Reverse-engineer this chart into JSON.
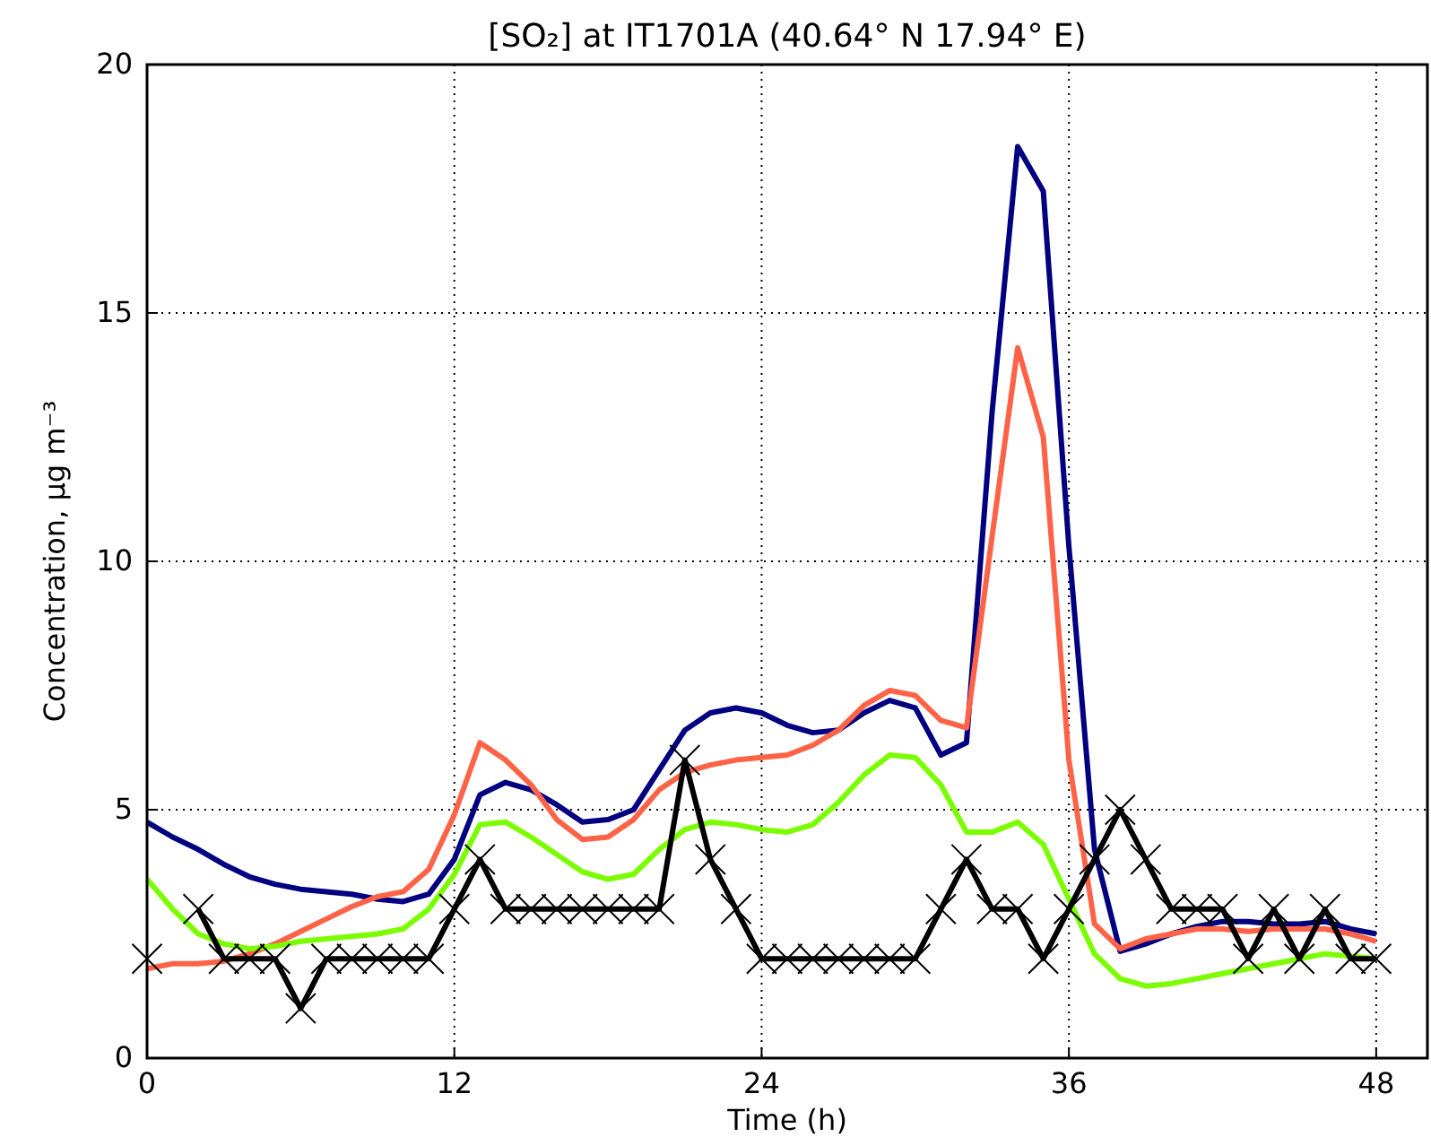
{
  "chart_data": {
    "type": "line",
    "title": "[SO₂] at IT1701A (40.64° N 17.94° E)",
    "xlabel": "Time (h)",
    "ylabel": "Concentration, μg m⁻³",
    "x": [
      0,
      1,
      2,
      3,
      4,
      5,
      6,
      7,
      8,
      9,
      10,
      11,
      12,
      13,
      14,
      15,
      16,
      17,
      18,
      19,
      20,
      21,
      22,
      23,
      24,
      25,
      26,
      27,
      28,
      29,
      30,
      31,
      32,
      33,
      34,
      35,
      36,
      37,
      38,
      39,
      40,
      41,
      42,
      43,
      44,
      45,
      46,
      47,
      48
    ],
    "xlim": [
      0,
      50
    ],
    "xticks": [
      0,
      12,
      24,
      36,
      48
    ],
    "ylim": [
      0,
      20
    ],
    "yticks": [
      0,
      5,
      10,
      15,
      20
    ],
    "grid": true,
    "line_style": "solid",
    "series": [
      {
        "color": "#000080",
        "marker": "none",
        "values": [
          4.75,
          4.45,
          4.2,
          3.9,
          3.65,
          3.5,
          3.4,
          3.35,
          3.3,
          3.2,
          3.15,
          3.3,
          4.0,
          5.3,
          5.55,
          5.4,
          5.1,
          4.75,
          4.8,
          5.0,
          5.8,
          6.6,
          6.95,
          7.05,
          6.95,
          6.7,
          6.55,
          6.6,
          6.95,
          7.2,
          7.05,
          6.1,
          6.35,
          13.0,
          18.35,
          17.45,
          10.3,
          4.2,
          2.15,
          2.3,
          2.5,
          2.65,
          2.75,
          2.75,
          2.7,
          2.7,
          2.75,
          2.6,
          2.5
        ]
      },
      {
        "color": "#ff6347",
        "marker": "none",
        "values": [
          1.8,
          1.9,
          1.9,
          1.95,
          2.1,
          2.3,
          2.55,
          2.8,
          3.05,
          3.25,
          3.35,
          3.8,
          4.9,
          6.35,
          6.0,
          5.5,
          4.8,
          4.4,
          4.45,
          4.8,
          5.4,
          5.75,
          5.9,
          6.0,
          6.05,
          6.1,
          6.3,
          6.6,
          7.1,
          7.4,
          7.3,
          6.8,
          6.65,
          10.5,
          14.3,
          12.5,
          6.0,
          2.7,
          2.2,
          2.4,
          2.5,
          2.6,
          2.6,
          2.55,
          2.6,
          2.6,
          2.6,
          2.5,
          2.35
        ]
      },
      {
        "color": "#7cfc00",
        "marker": "none",
        "values": [
          3.6,
          3.0,
          2.5,
          2.3,
          2.2,
          2.25,
          2.35,
          2.4,
          2.45,
          2.5,
          2.6,
          3.0,
          3.7,
          4.7,
          4.75,
          4.45,
          4.1,
          3.75,
          3.6,
          3.7,
          4.2,
          4.6,
          4.75,
          4.7,
          4.6,
          4.55,
          4.7,
          5.15,
          5.7,
          6.1,
          6.05,
          5.5,
          4.55,
          4.55,
          4.75,
          4.3,
          3.2,
          2.1,
          1.6,
          1.45,
          1.5,
          1.6,
          1.7,
          1.8,
          1.9,
          2.0,
          2.1,
          2.05,
          2.0
        ]
      },
      {
        "color": "#000000",
        "marker": "cross",
        "values": [
          2,
          null,
          3,
          2,
          2,
          2,
          1,
          2,
          2,
          2,
          2,
          2,
          3,
          4,
          3,
          3,
          3,
          3,
          3,
          3,
          3,
          6,
          4,
          3,
          2,
          2,
          2,
          2,
          2,
          2,
          2,
          3,
          4,
          3,
          3,
          2,
          3,
          4,
          5,
          4,
          3,
          3,
          3,
          2,
          3,
          2,
          3,
          2,
          2
        ]
      }
    ]
  }
}
